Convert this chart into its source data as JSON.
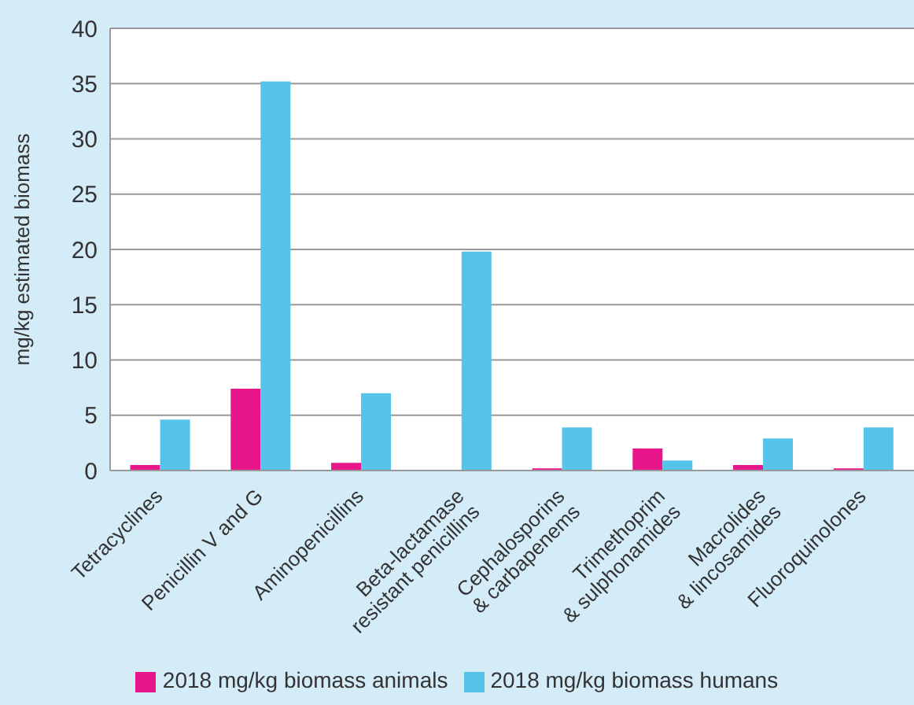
{
  "chart_data": {
    "type": "bar",
    "ylabel": "mg/kg estimated biomass",
    "categories": [
      "Tetracyclines",
      "Penicillin V and G",
      "Aminopenicillins",
      "Beta-lactamase\nresistant penicillins",
      "Cephalosporins\n& carbapenems",
      "Trimethoprim\n& sulphonamides",
      "Macrolides\n& lincosamides",
      "Fluoroquinolones"
    ],
    "series": [
      {
        "name": "2018 mg/kg biomass animals",
        "color": "#e8168a",
        "values": [
          0.5,
          7.4,
          0.7,
          null,
          0.2,
          2.0,
          0.5,
          0.2
        ]
      },
      {
        "name": "2018 mg/kg biomass humans",
        "color": "#56c3e8",
        "values": [
          4.6,
          35.2,
          7.0,
          19.8,
          3.9,
          0.9,
          2.9,
          3.9
        ]
      }
    ],
    "ylim": [
      0,
      40
    ],
    "yticks": [
      0,
      5,
      10,
      15,
      20,
      25,
      30,
      35,
      40
    ],
    "grid": "y",
    "legend": "bottom"
  }
}
